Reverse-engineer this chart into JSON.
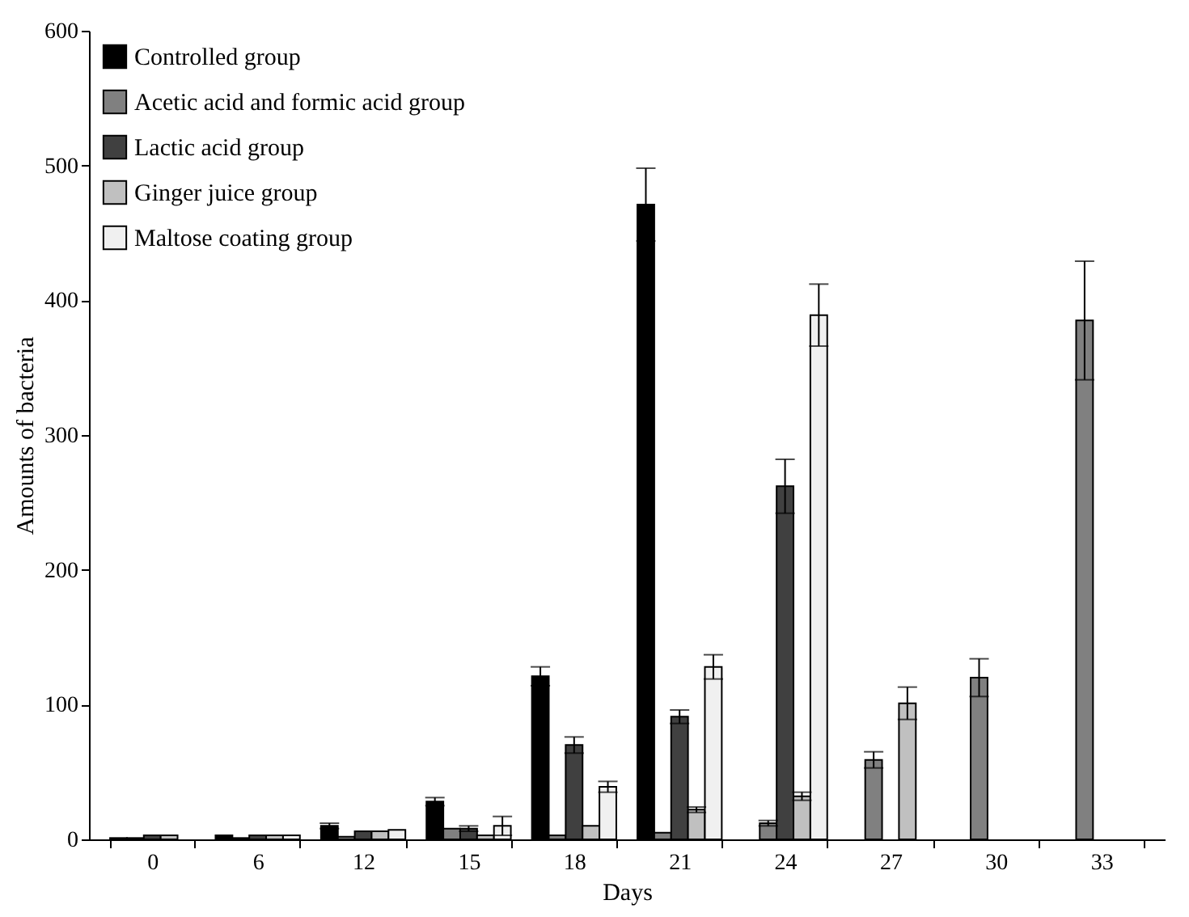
{
  "chart_data": {
    "type": "bar",
    "xlabel": "Days",
    "ylabel": "Amounts of bacteria",
    "categories": [
      "0",
      "6",
      "12",
      "15",
      "18",
      "21",
      "24",
      "27",
      "30",
      "33"
    ],
    "series": [
      {
        "name": "Controlled group",
        "color": "#000000",
        "values": [
          1,
          3,
          10,
          28,
          121,
          471,
          null,
          null,
          null,
          null
        ],
        "errors": [
          null,
          null,
          2,
          3,
          7,
          27,
          null,
          null,
          null,
          null
        ]
      },
      {
        "name": "Acetic acid and formic acid group",
        "color": "#808080",
        "values": [
          1,
          1,
          2,
          8,
          3,
          5,
          12,
          59,
          120,
          385
        ],
        "errors": [
          null,
          null,
          null,
          null,
          null,
          null,
          2,
          6,
          14,
          44
        ]
      },
      {
        "name": "Lactic acid group",
        "color": "#404040",
        "values": [
          3,
          3,
          6,
          8,
          70,
          91,
          262,
          null,
          null,
          null
        ],
        "errors": [
          null,
          null,
          null,
          2,
          6,
          5,
          20,
          null,
          null,
          null
        ]
      },
      {
        "name": "Ginger juice group",
        "color": "#c0c0c0",
        "values": [
          3,
          3,
          6,
          3,
          10,
          22,
          32,
          101,
          null,
          null
        ],
        "errors": [
          null,
          null,
          null,
          null,
          null,
          2,
          3,
          12,
          null,
          null
        ]
      },
      {
        "name": "Maltose coating group",
        "color": "#f0f0f0",
        "values": [
          null,
          3,
          7,
          10,
          39,
          128,
          389,
          null,
          null,
          null
        ],
        "errors": [
          null,
          null,
          null,
          7,
          4,
          9,
          23,
          null,
          null,
          null
        ]
      }
    ],
    "ylim": [
      0,
      600
    ],
    "yticks": [
      0,
      100,
      200,
      300,
      400,
      500,
      600
    ],
    "grid": false,
    "legend": "top left"
  }
}
